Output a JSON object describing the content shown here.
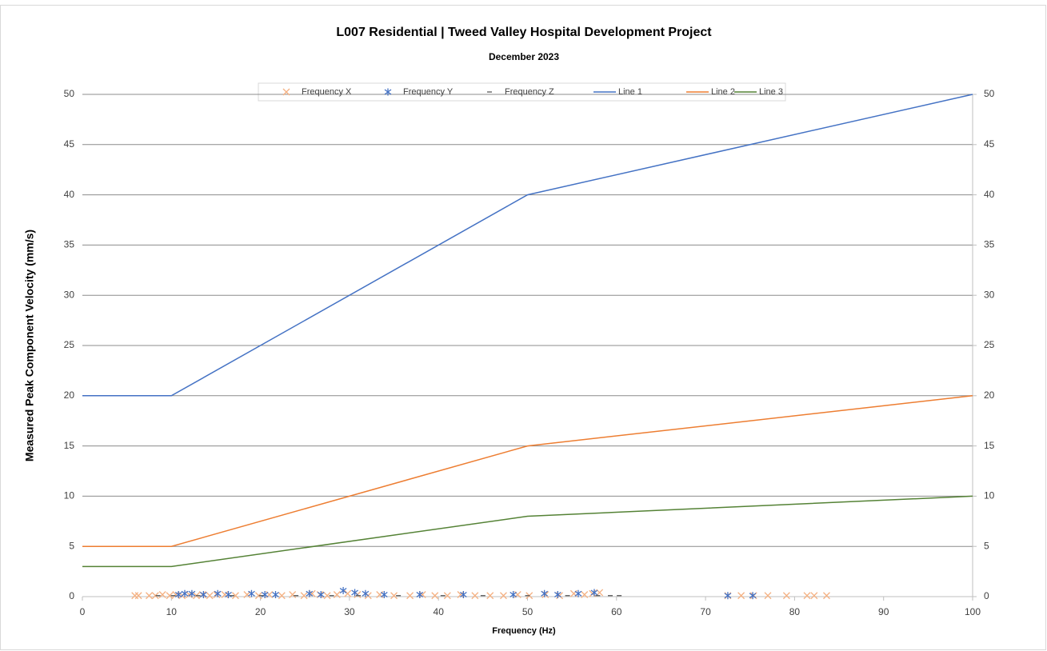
{
  "chart_data": {
    "type": "scatter",
    "title": "L007 Residential | Tweed Valley Hospital Development Project",
    "subtitle": "December 2023",
    "xlabel": "Frequency (Hz)",
    "ylabel": "Measured Peak Component Velocity  (mm/s)",
    "xlim": [
      0,
      100
    ],
    "xticks": [
      0,
      10,
      20,
      30,
      40,
      50,
      60,
      70,
      80,
      90,
      100
    ],
    "ylim": [
      0,
      50
    ],
    "yticks": [
      0,
      5,
      10,
      15,
      20,
      25,
      30,
      35,
      40,
      45,
      50
    ],
    "y2lim": [
      0,
      50
    ],
    "y2ticks": [
      0,
      5,
      10,
      15,
      20,
      25,
      30,
      35,
      40,
      45,
      50
    ],
    "grid": true,
    "legend": "top",
    "series": [
      {
        "name": "Frequency X",
        "color": "#f4b183",
        "marker": "x",
        "x": [
          5.9,
          6.3,
          7.5,
          8.2,
          9.0,
          9.8,
          10.5,
          11.2,
          12.0,
          12.8,
          13.5,
          14.3,
          15.1,
          16.0,
          17.2,
          18.5,
          19.8,
          21.0,
          22.4,
          23.6,
          24.9,
          25.8,
          26.7,
          27.5,
          28.6,
          29.8,
          30.9,
          32.1,
          33.4,
          35.0,
          36.8,
          38.2,
          39.6,
          41.0,
          42.5,
          44.1,
          45.8,
          47.3,
          48.9,
          50.2,
          52.0,
          53.6,
          55.2,
          56.4,
          57.3,
          58.1,
          72.5,
          74.0,
          75.4,
          77.0,
          79.1,
          81.4,
          82.2,
          83.6
        ],
        "values": [
          0.1,
          0.1,
          0.1,
          0.1,
          0.2,
          0.1,
          0.2,
          0.1,
          0.2,
          0.1,
          0.2,
          0.1,
          0.2,
          0.2,
          0.1,
          0.2,
          0.1,
          0.2,
          0.1,
          0.2,
          0.1,
          0.3,
          0.2,
          0.1,
          0.2,
          0.3,
          0.2,
          0.1,
          0.2,
          0.1,
          0.1,
          0.2,
          0.1,
          0.1,
          0.2,
          0.1,
          0.1,
          0.1,
          0.2,
          0.1,
          0.2,
          0.1,
          0.3,
          0.2,
          0.3,
          0.4,
          0.1,
          0.1,
          0.1,
          0.1,
          0.1,
          0.1,
          0.1,
          0.1
        ]
      },
      {
        "name": "Frequency Y",
        "color": "#4472c4",
        "marker": "asterisk",
        "x": [
          10.8,
          11.5,
          12.3,
          13.6,
          15.2,
          16.4,
          19.0,
          20.5,
          21.7,
          25.5,
          26.8,
          29.3,
          30.6,
          31.8,
          33.9,
          37.9,
          42.8,
          48.4,
          51.9,
          53.4,
          55.7,
          57.5,
          72.5,
          75.3
        ],
        "values": [
          0.2,
          0.3,
          0.3,
          0.2,
          0.3,
          0.2,
          0.3,
          0.2,
          0.2,
          0.3,
          0.2,
          0.6,
          0.4,
          0.3,
          0.2,
          0.2,
          0.2,
          0.2,
          0.3,
          0.2,
          0.3,
          0.4,
          0.1,
          0.1
        ]
      },
      {
        "name": "Frequency Z",
        "color": "#595959",
        "marker": "dash",
        "x": [
          8.5,
          10.2,
          13.0,
          16.8,
          20.1,
          24.0,
          28.0,
          31.0,
          35.5,
          40.5,
          45.0,
          50.0,
          54.5,
          57.9,
          59.3,
          60.3
        ],
        "values": [
          0.1,
          0.1,
          0.1,
          0.1,
          0.1,
          0.1,
          0.1,
          0.1,
          0.1,
          0.1,
          0.1,
          0.1,
          0.1,
          0.1,
          0.1,
          0.1
        ]
      },
      {
        "name": "Line 1",
        "color": "#4472c4",
        "marker": "line",
        "axis": "y2",
        "x": [
          0,
          10,
          50,
          100
        ],
        "values": [
          20,
          20,
          40,
          50
        ]
      },
      {
        "name": "Line 2",
        "color": "#ed7d31",
        "marker": "line",
        "axis": "y2",
        "x": [
          0,
          10,
          50,
          100
        ],
        "values": [
          5,
          5,
          15,
          20
        ]
      },
      {
        "name": "Line 3",
        "color": "#548235",
        "marker": "line",
        "axis": "y2",
        "x": [
          0,
          10,
          50,
          100
        ],
        "values": [
          3,
          3,
          8,
          10
        ]
      }
    ]
  }
}
